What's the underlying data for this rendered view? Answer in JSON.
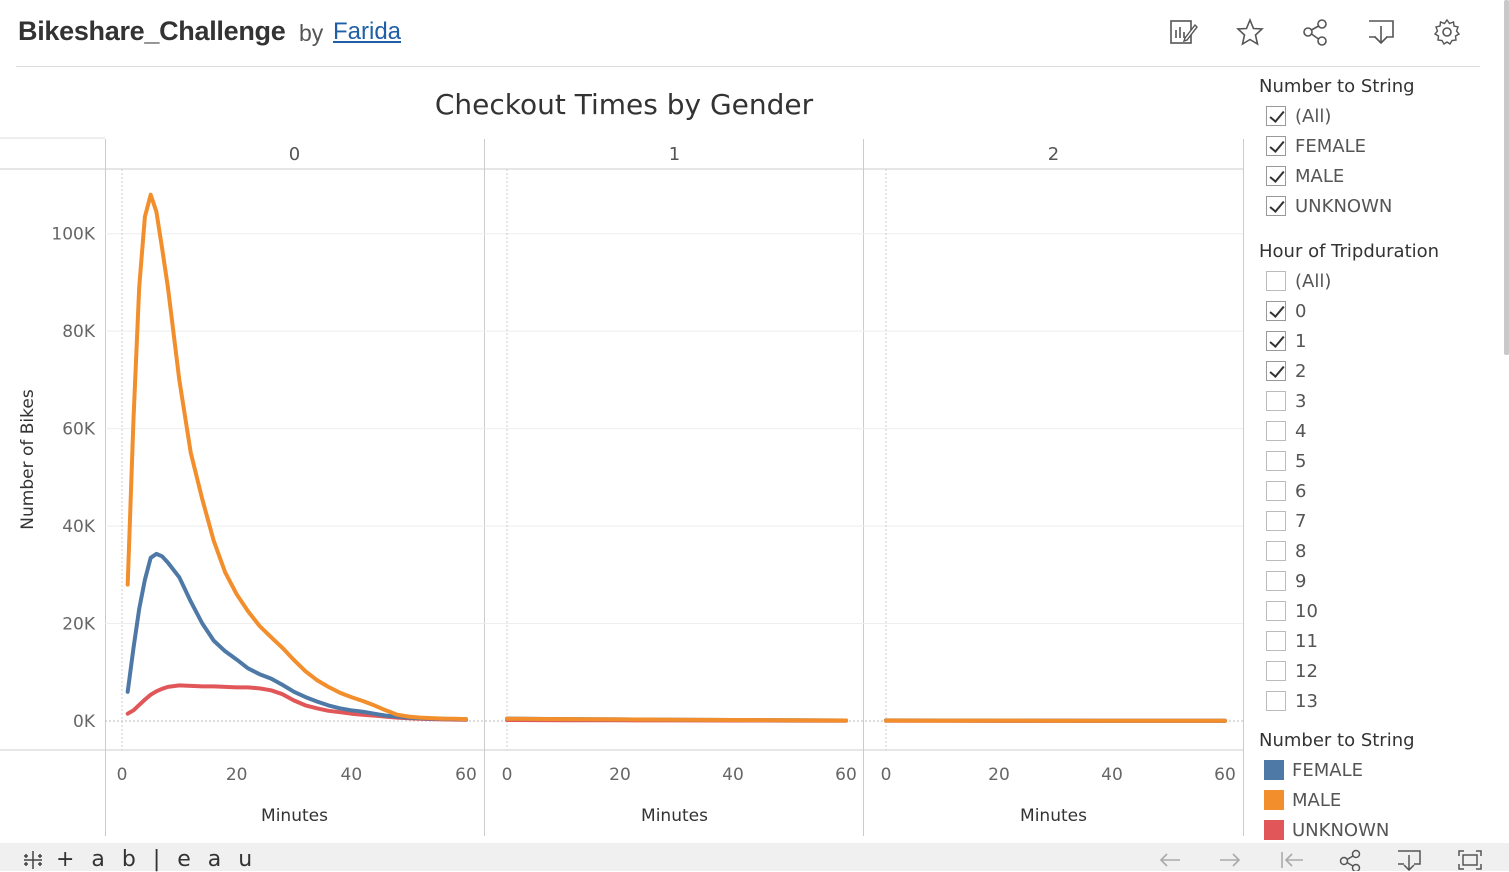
{
  "header": {
    "title": "Bikeshare_Challenge",
    "by": "by",
    "author": "Farida"
  },
  "toolbar": {
    "icons": [
      "edit-icon",
      "star-icon",
      "share-icon",
      "download-icon",
      "settings-icon"
    ]
  },
  "chart_data": {
    "type": "line",
    "title": "Checkout Times by Gender",
    "xlabel": "Minutes",
    "ylabel": "Number of Bikes",
    "panels": [
      "0",
      "1",
      "2"
    ],
    "x_ticks": [
      "0",
      "20",
      "40",
      "60"
    ],
    "y_ticks": [
      "0K",
      "20K",
      "40K",
      "60K",
      "80K",
      "100K"
    ],
    "ylim": [
      0,
      115000
    ],
    "xlim": [
      -2,
      62
    ],
    "grid": true,
    "series": [
      {
        "name": "FEMALE",
        "color": "#4e79a7",
        "panels": [
          {
            "x": [
              1,
              2,
              3,
              4,
              5,
              6,
              7,
              8,
              10,
              12,
              14,
              16,
              18,
              20,
              22,
              24,
              26,
              28,
              30,
              32,
              34,
              36,
              38,
              40,
              42,
              44,
              46,
              48,
              50,
              52,
              54,
              56,
              58,
              60
            ],
            "y": [
              6000,
              15000,
              23000,
              29000,
              33500,
              34300,
              33800,
              32500,
              29500,
              24500,
              20000,
              16500,
              14300,
              12600,
              10800,
              9600,
              8700,
              7400,
              6000,
              4900,
              4000,
              3200,
              2600,
              2200,
              1900,
              1500,
              1100,
              900,
              700,
              600,
              500,
              450,
              400,
              350
            ]
          },
          {
            "x": [
              0,
              10,
              20,
              30,
              40,
              50,
              60
            ],
            "y": [
              500,
              400,
              330,
              270,
              200,
              150,
              100
            ]
          },
          {
            "x": [
              0,
              10,
              20,
              30,
              40,
              50,
              60
            ],
            "y": [
              120,
              100,
              90,
              80,
              70,
              60,
              50
            ]
          }
        ]
      },
      {
        "name": "MALE",
        "color": "#f28e2b",
        "panels": [
          {
            "x": [
              1,
              2,
              3,
              4,
              5,
              6,
              7,
              8,
              10,
              12,
              14,
              16,
              18,
              20,
              22,
              24,
              26,
              28,
              30,
              32,
              34,
              36,
              38,
              40,
              42,
              44,
              46,
              48,
              50,
              52,
              54,
              56,
              58,
              60
            ],
            "y": [
              28000,
              62000,
              89000,
              103500,
              108000,
              104500,
              97000,
              89000,
              70000,
              55000,
              45500,
              37000,
              30500,
              26000,
              22500,
              19500,
              17200,
              15000,
              12500,
              10200,
              8400,
              7000,
              5800,
              4900,
              4100,
              3200,
              2200,
              1300,
              900,
              700,
              600,
              500,
              450,
              400
            ]
          },
          {
            "x": [
              0,
              10,
              20,
              30,
              40,
              50,
              60
            ],
            "y": [
              450,
              380,
              320,
              260,
              200,
              150,
              100
            ]
          },
          {
            "x": [
              0,
              10,
              20,
              30,
              40,
              50,
              60
            ],
            "y": [
              100,
              90,
              80,
              70,
              60,
              50,
              40
            ]
          }
        ]
      },
      {
        "name": "UNKNOWN",
        "color": "#e15759",
        "panels": [
          {
            "x": [
              1,
              2,
              3,
              4,
              5,
              6,
              7,
              8,
              10,
              12,
              14,
              16,
              18,
              20,
              22,
              24,
              26,
              28,
              30,
              32,
              34,
              36,
              38,
              40,
              42,
              44,
              46,
              48,
              50,
              52,
              54,
              56,
              58,
              60
            ],
            "y": [
              1500,
              2200,
              3300,
              4400,
              5400,
              6100,
              6600,
              7000,
              7300,
              7200,
              7100,
              7100,
              7000,
              6900,
              6900,
              6700,
              6300,
              5500,
              4200,
              3200,
              2600,
              2100,
              1800,
              1500,
              1300,
              1100,
              900,
              700,
              550,
              450,
              380,
              320,
              280,
              250
            ]
          },
          {
            "x": [
              0,
              10,
              20,
              30,
              40,
              50,
              60
            ],
            "y": [
              200,
              170,
              150,
              120,
              100,
              80,
              60
            ]
          },
          {
            "x": [
              0,
              10,
              20,
              30,
              40,
              50,
              60
            ],
            "y": [
              40,
              35,
              30,
              25,
              20,
              18,
              15
            ]
          }
        ]
      }
    ]
  },
  "filters": {
    "gender": {
      "title": "Number to String",
      "items": [
        {
          "label": "(All)",
          "checked": true
        },
        {
          "label": "FEMALE",
          "checked": true
        },
        {
          "label": "MALE",
          "checked": true
        },
        {
          "label": "UNKNOWN",
          "checked": true
        }
      ]
    },
    "hour": {
      "title": "Hour of Tripduration",
      "items": [
        {
          "label": "(All)",
          "checked": false
        },
        {
          "label": "0",
          "checked": true
        },
        {
          "label": "1",
          "checked": true
        },
        {
          "label": "2",
          "checked": true
        },
        {
          "label": "3",
          "checked": false
        },
        {
          "label": "4",
          "checked": false
        },
        {
          "label": "5",
          "checked": false
        },
        {
          "label": "6",
          "checked": false
        },
        {
          "label": "7",
          "checked": false
        },
        {
          "label": "8",
          "checked": false
        },
        {
          "label": "9",
          "checked": false
        },
        {
          "label": "10",
          "checked": false
        },
        {
          "label": "11",
          "checked": false
        },
        {
          "label": "12",
          "checked": false
        },
        {
          "label": "13",
          "checked": false
        }
      ]
    }
  },
  "legend": {
    "title": "Number to String",
    "items": [
      {
        "label": "FEMALE",
        "color": "#4e79a7"
      },
      {
        "label": "MALE",
        "color": "#f28e2b"
      },
      {
        "label": "UNKNOWN",
        "color": "#e15759"
      }
    ]
  },
  "footer": {
    "logo": "+ a b | e a u",
    "icons": [
      "undo-icon",
      "redo-icon",
      "revert-icon",
      "share-icon",
      "download-icon",
      "fullscreen-icon"
    ]
  }
}
